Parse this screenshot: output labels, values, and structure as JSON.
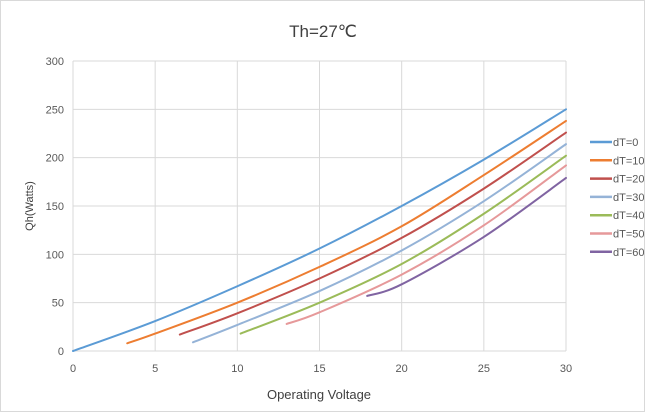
{
  "chart_data": {
    "type": "line",
    "title": "Th=27℃",
    "xlabel": "Operating Voltage",
    "ylabel": "Qh(Watts)",
    "xlim": [
      0,
      30
    ],
    "ylim": [
      0,
      300
    ],
    "x_ticks": [
      "0",
      "5",
      "10",
      "15",
      "20",
      "25",
      "30"
    ],
    "y_ticks": [
      "0",
      "50",
      "100",
      "150",
      "200",
      "250",
      "300"
    ],
    "grid": "vertical and horizontal",
    "legend_position": "right",
    "series": [
      {
        "name": "dT=0",
        "color": "#5b9bd5",
        "x": [
          0,
          5,
          10,
          15,
          20,
          25,
          30
        ],
        "y": [
          0,
          31,
          67,
          106,
          150,
          198,
          250
        ]
      },
      {
        "name": "dT=10",
        "color": "#ed7d31",
        "x": [
          3.3,
          5,
          10,
          15,
          20,
          25,
          30
        ],
        "y": [
          8,
          18,
          50,
          87,
          129,
          182,
          238
        ]
      },
      {
        "name": "dT=20",
        "color": "#c0504d",
        "x": [
          6.5,
          10,
          15,
          20,
          25,
          30
        ],
        "y": [
          17,
          39,
          75,
          117,
          168,
          226
        ]
      },
      {
        "name": "dT=30",
        "color": "#95b3d7",
        "x": [
          7.3,
          10,
          15,
          20,
          25,
          30
        ],
        "y": [
          9,
          27,
          62,
          104,
          155,
          214
        ]
      },
      {
        "name": "dT=40",
        "color": "#9bbb59",
        "x": [
          10.2,
          15,
          20,
          25,
          30
        ],
        "y": [
          18,
          50,
          90,
          142,
          202
        ]
      },
      {
        "name": "dT=50",
        "color": "#e6999a",
        "x": [
          13,
          15,
          20,
          25,
          30
        ],
        "y": [
          28,
          40,
          79,
          130,
          192
        ]
      },
      {
        "name": "dT=60",
        "color": "#8064a2",
        "x": [
          17.9,
          20,
          25,
          30
        ],
        "y": [
          57,
          69,
          118,
          179
        ]
      }
    ]
  }
}
